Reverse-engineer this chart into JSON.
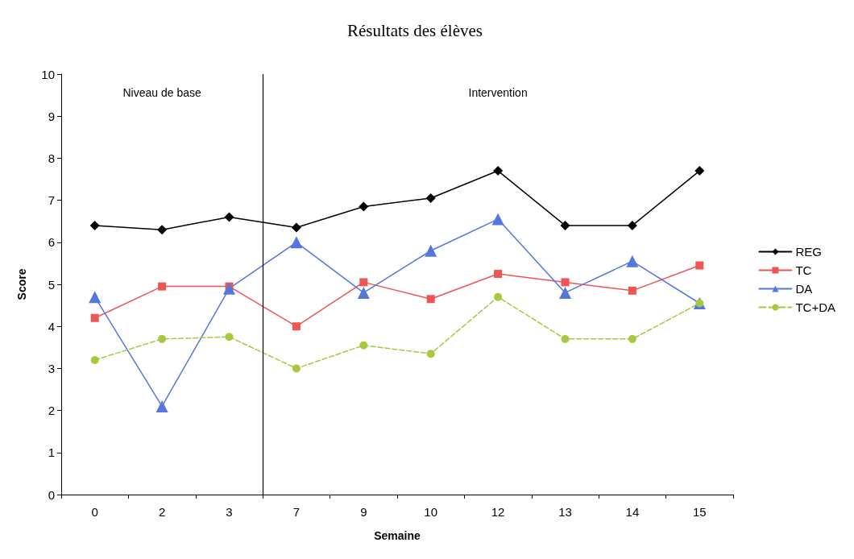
{
  "chart_data": {
    "type": "line",
    "title": "Résultats des élèves",
    "xlabel": "Semaine",
    "ylabel": "Score",
    "categories": [
      "0",
      "2",
      "3",
      "7",
      "9",
      "10",
      "12",
      "13",
      "14",
      "15"
    ],
    "series": [
      {
        "name": "REG",
        "color": "#000000",
        "marker": "diamond",
        "line_style": "solid",
        "values": [
          6.4,
          6.3,
          6.6,
          6.35,
          6.85,
          7.05,
          7.7,
          6.4,
          6.4,
          7.7
        ]
      },
      {
        "name": "TC",
        "color": "#ee5555",
        "marker": "square",
        "line_style": "solid",
        "values": [
          4.2,
          4.95,
          4.95,
          4.0,
          5.05,
          4.65,
          5.25,
          5.05,
          4.85,
          5.45
        ]
      },
      {
        "name": "DA",
        "color": "#5577dd",
        "marker": "triangle",
        "line_style": "solid",
        "values": [
          4.7,
          2.1,
          4.9,
          6.0,
          4.8,
          5.8,
          6.55,
          4.8,
          5.55,
          4.55
        ]
      },
      {
        "name": "TC+DA",
        "color": "#a8c840",
        "marker": "circle",
        "line_style": "dashed",
        "values": [
          3.2,
          3.7,
          3.75,
          3.0,
          3.55,
          3.35,
          4.7,
          3.7,
          3.7,
          4.55
        ]
      }
    ],
    "annotations": [
      "Niveau de base",
      "Intervention"
    ],
    "ylim": [
      0,
      10
    ],
    "yticks": [
      0,
      1,
      2,
      3,
      4,
      5,
      6,
      7,
      8,
      9,
      10
    ],
    "grid": false,
    "legend": "right"
  }
}
